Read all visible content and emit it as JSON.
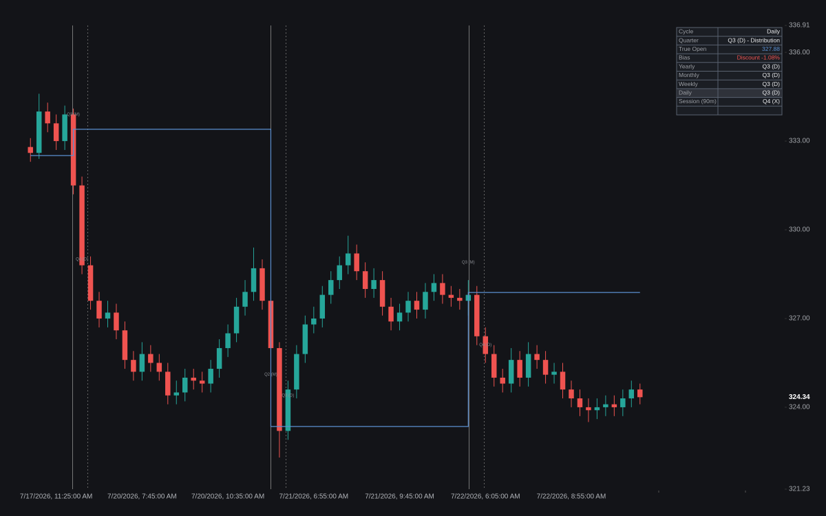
{
  "chart_data": {
    "type": "candlestick",
    "categories": [
      null,
      null,
      null,
      "7/17/2026, 11:25:00 AM",
      null,
      null,
      null,
      null,
      null,
      null,
      null,
      null,
      null,
      "7/20/2026, 7:45:00 AM",
      null,
      null,
      null,
      null,
      null,
      null,
      null,
      null,
      null,
      "7/20/2026, 10:35:00 AM",
      null,
      null,
      null,
      null,
      null,
      null,
      null,
      null,
      null,
      "7/21/2026, 6:55:00 AM",
      null,
      null,
      null,
      null,
      null,
      null,
      null,
      null,
      null,
      "7/21/2026, 9:45:00 AM",
      null,
      null,
      null,
      null,
      null,
      null,
      null,
      null,
      null,
      "7/22/2026, 6:05:00 AM",
      null,
      null,
      null,
      null,
      null,
      null,
      null,
      null,
      null,
      "7/22/2026, 8:55:00 AM",
      null,
      null,
      null,
      null,
      null,
      null,
      null,
      null
    ],
    "open": [
      332.8,
      332.6,
      334.0,
      333.6,
      333.0,
      333.9,
      331.5,
      328.8,
      327.6,
      327.0,
      327.2,
      326.6,
      325.6,
      325.2,
      325.8,
      325.5,
      325.2,
      324.4,
      324.5,
      325.0,
      324.9,
      324.8,
      325.3,
      326.0,
      326.5,
      327.4,
      327.9,
      328.7,
      327.6,
      326.0,
      323.2,
      324.6,
      325.8,
      326.8,
      327.0,
      327.8,
      328.3,
      328.8,
      329.2,
      328.6,
      328.0,
      328.3,
      327.4,
      326.9,
      327.2,
      327.6,
      327.3,
      327.9,
      328.2,
      327.8,
      327.7,
      327.6,
      327.8,
      326.4,
      325.8,
      325.0,
      324.8,
      325.6,
      325.0,
      325.8,
      325.6,
      325.1,
      325.2,
      324.6,
      324.3,
      324.0,
      323.9,
      324.0,
      324.1,
      324.0,
      324.3,
      324.6
    ],
    "high": [
      333.1,
      334.6,
      334.3,
      333.9,
      334.2,
      334.1,
      331.8,
      329.1,
      327.9,
      327.6,
      327.5,
      326.9,
      325.9,
      326.2,
      326.1,
      325.8,
      325.5,
      324.9,
      325.3,
      325.3,
      325.2,
      325.6,
      326.3,
      326.8,
      327.7,
      328.3,
      329.4,
      329.0,
      327.9,
      326.2,
      324.9,
      326.1,
      327.1,
      327.4,
      328.1,
      328.6,
      329.1,
      329.8,
      329.5,
      328.9,
      328.7,
      328.6,
      327.7,
      327.5,
      327.9,
      327.9,
      328.2,
      328.5,
      328.5,
      328.1,
      328.0,
      328.3,
      328.1,
      326.7,
      326.1,
      325.3,
      326.0,
      325.9,
      326.2,
      326.1,
      325.9,
      325.5,
      325.5,
      324.9,
      324.6,
      324.3,
      324.3,
      324.4,
      324.4,
      324.6,
      324.9,
      324.8
    ],
    "low": [
      332.3,
      332.4,
      333.3,
      332.7,
      332.7,
      331.2,
      328.5,
      327.3,
      326.7,
      326.7,
      326.3,
      325.3,
      324.9,
      324.9,
      325.2,
      324.9,
      324.1,
      324.1,
      324.2,
      324.6,
      324.5,
      324.5,
      325.0,
      325.7,
      326.2,
      327.1,
      327.6,
      327.3,
      325.7,
      322.3,
      322.9,
      324.3,
      325.5,
      326.5,
      326.7,
      327.5,
      328.0,
      328.5,
      328.3,
      327.7,
      327.7,
      327.1,
      326.6,
      326.6,
      326.9,
      327.0,
      327.0,
      327.6,
      327.5,
      327.4,
      327.3,
      327.1,
      326.1,
      325.5,
      324.7,
      324.5,
      324.5,
      324.7,
      324.7,
      325.3,
      324.8,
      324.8,
      324.3,
      324.0,
      323.7,
      323.5,
      323.6,
      323.7,
      323.7,
      323.7,
      324.0,
      324.1
    ],
    "close": [
      332.6,
      334.0,
      333.6,
      333.0,
      333.9,
      331.5,
      328.8,
      327.6,
      327.0,
      327.2,
      326.6,
      325.6,
      325.2,
      325.8,
      325.5,
      325.2,
      324.4,
      324.5,
      325.0,
      324.9,
      324.8,
      325.3,
      326.0,
      326.5,
      327.4,
      327.9,
      328.7,
      327.6,
      326.0,
      323.2,
      324.6,
      325.8,
      326.8,
      327.0,
      327.8,
      328.3,
      328.8,
      329.2,
      328.6,
      328.0,
      328.3,
      327.4,
      326.9,
      327.2,
      327.6,
      327.3,
      327.9,
      328.2,
      327.8,
      327.7,
      327.6,
      327.8,
      326.4,
      325.8,
      325.0,
      324.8,
      325.6,
      325.0,
      325.8,
      325.6,
      325.1,
      325.2,
      324.6,
      324.3,
      324.0,
      323.9,
      324.0,
      324.1,
      324.0,
      324.3,
      324.6,
      324.34
    ],
    "up_color": "#26a69a",
    "down_color": "#ef5350",
    "level_line": {
      "color": "#5b8fd0",
      "values": [
        332.51,
        332.51,
        332.51,
        332.51,
        332.51,
        333.4,
        333.4,
        333.4,
        333.4,
        333.4,
        333.4,
        333.4,
        333.4,
        333.4,
        333.4,
        333.4,
        333.4,
        333.4,
        333.4,
        333.4,
        333.4,
        333.4,
        333.4,
        333.4,
        333.4,
        333.4,
        333.4,
        333.4,
        323.35,
        323.35,
        323.35,
        323.35,
        323.35,
        323.35,
        323.35,
        323.35,
        323.35,
        323.35,
        323.35,
        323.35,
        323.35,
        323.35,
        323.35,
        323.35,
        323.35,
        323.35,
        323.35,
        323.35,
        323.35,
        323.35,
        323.35,
        327.88,
        327.88,
        327.88,
        327.88,
        327.88,
        327.88,
        327.88,
        327.88,
        327.88,
        327.88,
        327.88,
        327.88,
        327.88,
        327.88,
        327.88,
        327.88,
        327.88,
        327.88,
        327.88,
        327.88,
        327.88
      ]
    },
    "annotations": [
      {
        "text": "Q3 (M)",
        "index": 5,
        "value": 333.9
      },
      {
        "text": "Q4 (D)",
        "index": 6,
        "value": 329.0
      },
      {
        "text": "Q2 (M)",
        "index": 28,
        "value": 325.1
      },
      {
        "text": "Q3 (D)",
        "index": 30,
        "value": 324.4
      },
      {
        "text": "Q3 (M)",
        "index": 51,
        "value": 328.9
      },
      {
        "text": "Q4 (D)",
        "index": 53,
        "value": 326.1
      }
    ],
    "ylim": [
      321.23,
      336.91
    ],
    "yticks": [
      321.23,
      {
        "value": 324,
        "label": "324.00"
      },
      {
        "value": 327,
        "label": "327.00"
      },
      {
        "value": 330,
        "label": "330.00"
      },
      {
        "value": 333,
        "label": "333.00"
      },
      {
        "value": 336,
        "label": "336.00"
      },
      336.91
    ],
    "last_price": 324.34
  },
  "info_table": {
    "rows": [
      [
        "Cycle",
        "Daily"
      ],
      [
        "Quarter",
        "Q3 (D) - Distribution"
      ],
      [
        "True Open",
        "327.88"
      ],
      [
        "Bias",
        "Discount -1.08%"
      ],
      [
        "Yearly",
        "Q3 (D)"
      ],
      [
        "Monthly",
        "Q3 (D)"
      ],
      [
        "Weekly",
        "Q3 (D)"
      ],
      [
        "Daily",
        "Q3 (D)"
      ],
      [
        "Session (90m)",
        "Q4 (X)"
      ]
    ]
  }
}
